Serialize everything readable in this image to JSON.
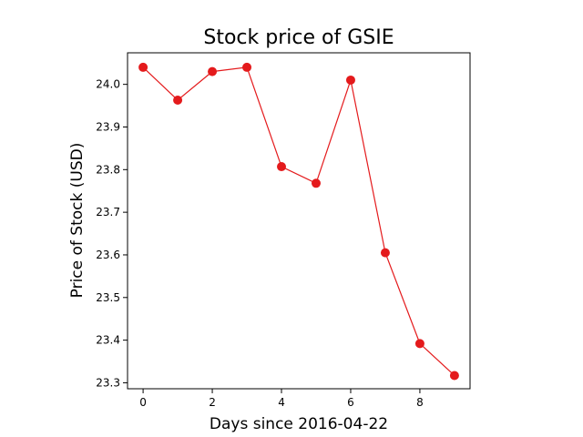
{
  "chart_data": {
    "type": "line",
    "title": "Stock price of GSIE",
    "xlabel": "Days since 2016-04-22",
    "ylabel": "Price of Stock (USD)",
    "x": [
      0,
      1,
      2,
      3,
      4,
      5,
      6,
      7,
      8,
      9
    ],
    "series": [
      {
        "values": [
          24.04,
          23.963,
          24.03,
          24.04,
          23.807,
          23.768,
          24.01,
          23.605,
          23.392,
          23.317
        ],
        "color": "#e41a1c"
      }
    ],
    "xlim": [
      -0.45,
      9.45
    ],
    "ylim": [
      23.286,
      24.074
    ],
    "xticks": [
      0,
      2,
      4,
      6,
      8
    ],
    "yticks": [
      23.3,
      23.4,
      23.5,
      23.6,
      23.7,
      23.8,
      23.9,
      24.0
    ],
    "ytick_labels": [
      "23.3",
      "23.4",
      "23.5",
      "23.6",
      "23.7",
      "23.8",
      "23.9",
      "24.0"
    ],
    "grid": false,
    "marker": "circle"
  }
}
